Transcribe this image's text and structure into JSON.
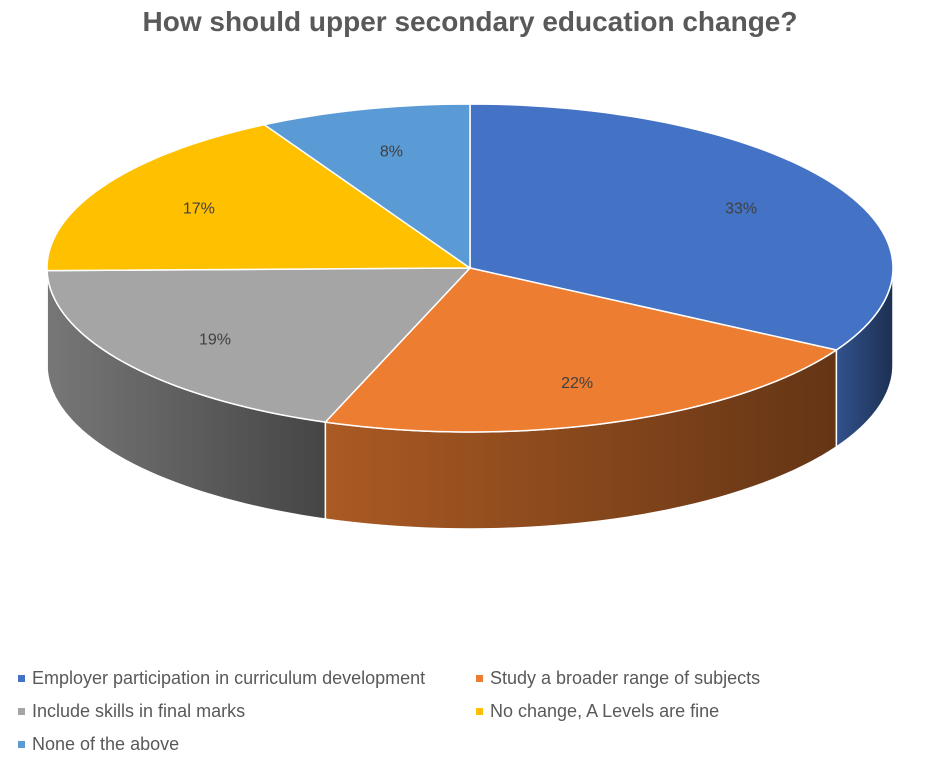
{
  "chart_data": {
    "type": "pie",
    "title": "How should upper secondary education change?",
    "categories": [
      "Employer participation in curriculum development",
      "Study a broader range of subjects",
      "Include skills in final marks",
      "No change, A Levels are fine",
      "None of the above"
    ],
    "values": [
      33,
      22,
      19,
      17,
      8
    ],
    "labels": [
      "33%",
      "22%",
      "19%",
      "17%",
      "8%"
    ],
    "colors": [
      "#4472C4",
      "#ED7D31",
      "#A5A5A5",
      "#FFC000",
      "#5B9BD5"
    ],
    "style": "3d",
    "legend_position": "bottom"
  }
}
